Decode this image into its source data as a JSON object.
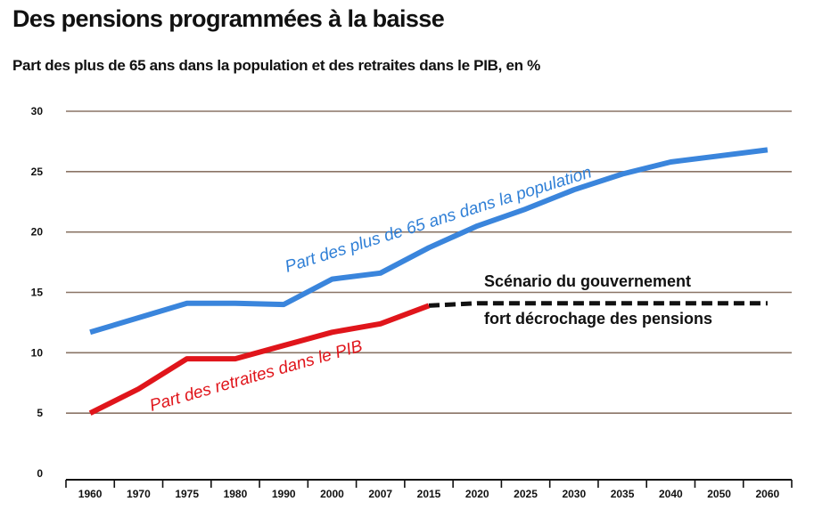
{
  "chart_data": {
    "type": "line",
    "title": "Des pensions programmées à la baisse",
    "subtitle": "Part des plus de 65 ans dans la population et des retraites dans le PIB, en %",
    "categories": [
      "1960",
      "1970",
      "1975",
      "1980",
      "1990",
      "2000",
      "2007",
      "2015",
      "2020",
      "2025",
      "2030",
      "2035",
      "2040",
      "2050",
      "2060"
    ],
    "ylim": [
      0,
      30
    ],
    "yticks": [
      0,
      5,
      10,
      15,
      20,
      25,
      30
    ],
    "grid": true,
    "series": [
      {
        "name": "Part des plus de 65 ans dans la population",
        "color": "#3a85dc",
        "style": "solid",
        "values": [
          11.7,
          12.9,
          14.1,
          14.1,
          14.0,
          16.1,
          16.6,
          18.7,
          20.5,
          21.9,
          23.5,
          24.8,
          25.8,
          26.3,
          26.8
        ]
      },
      {
        "name": "Part des retraites dans le PIB",
        "color": "#e0151b",
        "style": "solid",
        "values": [
          5.0,
          7.0,
          9.5,
          9.5,
          10.6,
          11.7,
          12.4,
          13.9,
          null,
          null,
          null,
          null,
          null,
          null,
          null
        ]
      },
      {
        "name": "Scénario du gouvernement fort décrochage des pensions",
        "color": "#111111",
        "style": "dashed",
        "values": [
          null,
          null,
          null,
          null,
          null,
          null,
          null,
          13.9,
          14.1,
          14.1,
          14.1,
          14.1,
          14.1,
          14.1,
          14.1
        ]
      }
    ],
    "annotations": {
      "blue_label": "Part des plus de 65 ans dans la population",
      "red_label": "Part des retraites dans le PIB",
      "scenario_line1": "Scénario du gouvernement",
      "scenario_line2": "fort décrochage des pensions"
    }
  }
}
